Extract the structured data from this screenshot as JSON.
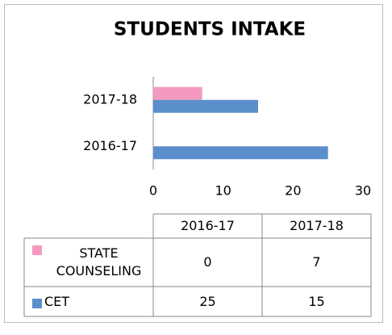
{
  "chart_data": {
    "type": "bar",
    "orientation": "horizontal",
    "title": "STUDENTS INTAKE",
    "categories": [
      "2016-17",
      "2017-18"
    ],
    "series": [
      {
        "name": "STATE COUNSELING",
        "color": "#f49ac1",
        "values": [
          0,
          7
        ]
      },
      {
        "name": "CET",
        "color": "#5b8fcc",
        "values": [
          25,
          15
        ]
      }
    ],
    "xlim": [
      0,
      30
    ],
    "xticks": [
      0,
      10,
      20,
      30
    ],
    "grid": false,
    "data_table": true
  }
}
